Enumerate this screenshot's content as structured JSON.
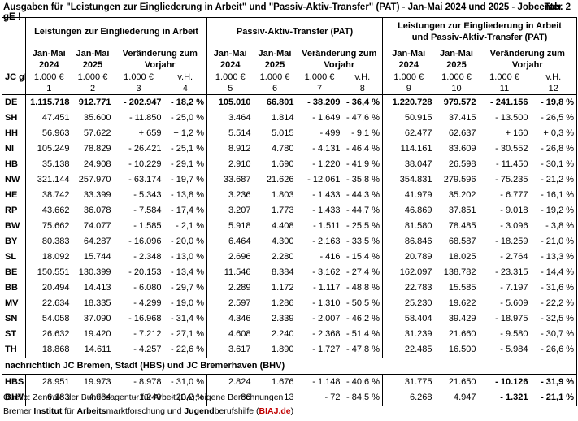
{
  "title": "Ausgaben für \"Leistungen zur Eingliederung in Arbeit\" und \"Passiv-Aktiv-Transfer\" (PAT) - Jan-Mai 2024 und 2025 - Jobcenter gE !",
  "tab_label": "Tab. 2",
  "groups": {
    "g1": "Leistungen zur Eingliederung in Arbeit",
    "g2": "Passiv-Aktiv-Transfer (PAT)",
    "g3_line1": "Leistungen zur Eingliederung in Arbeit",
    "g3_line2": "und Passiv-Aktiv-Transfer (PAT)"
  },
  "sub": {
    "jm": "Jan-Mai",
    "y2024": "2024",
    "y2025": "2025",
    "ver1": "Veränderung zum",
    "ver2": "Vorjahr"
  },
  "units": {
    "lbl": "JC gE",
    "eur": "1.000 €",
    "vh": "v.H."
  },
  "colnums": [
    "1",
    "2",
    "3",
    "4",
    "5",
    "6",
    "7",
    "8",
    "9",
    "10",
    "11",
    "12"
  ],
  "rows": [
    {
      "l": "DE",
      "v": [
        "1.115.718",
        "912.771",
        "- 202.947",
        "- 18,2 %",
        "105.010",
        "66.801",
        "- 38.209",
        "- 36,4 %",
        "1.220.728",
        "979.572",
        "- 241.156",
        "- 19,8 %"
      ]
    },
    {
      "l": "SH",
      "v": [
        "47.451",
        "35.600",
        "- 11.850",
        "- 25,0 %",
        "3.464",
        "1.814",
        "- 1.649",
        "- 47,6 %",
        "50.915",
        "37.415",
        "- 13.500",
        "- 26,5 %"
      ]
    },
    {
      "l": "HH",
      "v": [
        "56.963",
        "57.622",
        "+ 659",
        "+ 1,2 %",
        "5.514",
        "5.015",
        "- 499",
        "- 9,1 %",
        "62.477",
        "62.637",
        "+ 160",
        "+ 0,3 %"
      ]
    },
    {
      "l": "NI",
      "v": [
        "105.249",
        "78.829",
        "- 26.421",
        "- 25,1 %",
        "8.912",
        "4.780",
        "- 4.131",
        "- 46,4 %",
        "114.161",
        "83.609",
        "- 30.552",
        "- 26,8 %"
      ]
    },
    {
      "l": "HB",
      "v": [
        "35.138",
        "24.908",
        "- 10.229",
        "- 29,1 %",
        "2.910",
        "1.690",
        "- 1.220",
        "- 41,9 %",
        "38.047",
        "26.598",
        "- 11.450",
        "- 30,1 %"
      ]
    },
    {
      "l": "NW",
      "v": [
        "321.144",
        "257.970",
        "- 63.174",
        "- 19,7 %",
        "33.687",
        "21.626",
        "- 12.061",
        "- 35,8 %",
        "354.831",
        "279.596",
        "- 75.235",
        "- 21,2 %"
      ]
    },
    {
      "l": "HE",
      "v": [
        "38.742",
        "33.399",
        "- 5.343",
        "- 13,8 %",
        "3.236",
        "1.803",
        "- 1.433",
        "- 44,3 %",
        "41.979",
        "35.202",
        "- 6.777",
        "- 16,1 %"
      ]
    },
    {
      "l": "RP",
      "v": [
        "43.662",
        "36.078",
        "- 7.584",
        "- 17,4 %",
        "3.207",
        "1.773",
        "- 1.433",
        "- 44,7 %",
        "46.869",
        "37.851",
        "- 9.018",
        "- 19,2 %"
      ]
    },
    {
      "l": "BW",
      "v": [
        "75.662",
        "74.077",
        "- 1.585",
        "- 2,1 %",
        "5.918",
        "4.408",
        "- 1.511",
        "- 25,5 %",
        "81.580",
        "78.485",
        "- 3.096",
        "- 3,8 %"
      ]
    },
    {
      "l": "BY",
      "v": [
        "80.383",
        "64.287",
        "- 16.096",
        "- 20,0 %",
        "6.464",
        "4.300",
        "- 2.163",
        "- 33,5 %",
        "86.846",
        "68.587",
        "- 18.259",
        "- 21,0 %"
      ]
    },
    {
      "l": "SL",
      "v": [
        "18.092",
        "15.744",
        "- 2.348",
        "- 13,0 %",
        "2.696",
        "2.280",
        "- 416",
        "- 15,4 %",
        "20.789",
        "18.025",
        "- 2.764",
        "- 13,3 %"
      ]
    },
    {
      "l": "BE",
      "v": [
        "150.551",
        "130.399",
        "- 20.153",
        "- 13,4 %",
        "11.546",
        "8.384",
        "- 3.162",
        "- 27,4 %",
        "162.097",
        "138.782",
        "- 23.315",
        "- 14,4 %"
      ]
    },
    {
      "l": "BB",
      "v": [
        "20.494",
        "14.413",
        "- 6.080",
        "- 29,7 %",
        "2.289",
        "1.172",
        "- 1.117",
        "- 48,8 %",
        "22.783",
        "15.585",
        "- 7.197",
        "- 31,6 %"
      ]
    },
    {
      "l": "MV",
      "v": [
        "22.634",
        "18.335",
        "- 4.299",
        "- 19,0 %",
        "2.597",
        "1.286",
        "- 1.310",
        "- 50,5 %",
        "25.230",
        "19.622",
        "- 5.609",
        "- 22,2 %"
      ]
    },
    {
      "l": "SN",
      "v": [
        "54.058",
        "37.090",
        "- 16.968",
        "- 31,4 %",
        "4.346",
        "2.339",
        "- 2.007",
        "- 46,2 %",
        "58.404",
        "39.429",
        "- 18.975",
        "- 32,5 %"
      ]
    },
    {
      "l": "ST",
      "v": [
        "26.632",
        "19.420",
        "- 7.212",
        "- 27,1 %",
        "4.608",
        "2.240",
        "- 2.368",
        "- 51,4 %",
        "31.239",
        "21.660",
        "- 9.580",
        "- 30,7 %"
      ]
    },
    {
      "l": "TH",
      "v": [
        "18.868",
        "14.611",
        "- 4.257",
        "- 22,6 %",
        "3.617",
        "1.890",
        "- 1.727",
        "- 47,8 %",
        "22.485",
        "16.500",
        "- 5.984",
        "- 26,6 %"
      ]
    }
  ],
  "nachrichtlich": "nachrichtlich JC Bremen, Stadt (HBS) und JC Bremerhaven (BHV)",
  "bremen": [
    {
      "l": "HBS",
      "v": [
        "28.951",
        "19.973",
        "- 8.978",
        "- 31,0 %",
        "2.824",
        "1.676",
        "- 1.148",
        "- 40,6 %",
        "31.775",
        "21.650",
        "- 10.126",
        "- 31,9 %"
      ]
    },
    {
      "l": "BHV",
      "v": [
        "6.183",
        "4.934",
        "- 1.249",
        "- 20,2 %",
        "86",
        "13",
        "- 72",
        "- 84,5 %",
        "6.268",
        "4.947",
        "- 1.321",
        "- 21,1 %"
      ]
    }
  ],
  "footer": {
    "source": "Quelle: Zentrale der Bundesagentur für Arbeit (BA); eigene Berechnungen",
    "org_a": "Bremer ",
    "org_b": "Institut",
    "org_c": " für ",
    "org_d": "Arbeits",
    "org_e": "marktforschung und ",
    "org_f": "Jugend",
    "org_g": "berufshilfe (",
    "org_h": "BIAJ.de",
    "org_i": ")"
  }
}
